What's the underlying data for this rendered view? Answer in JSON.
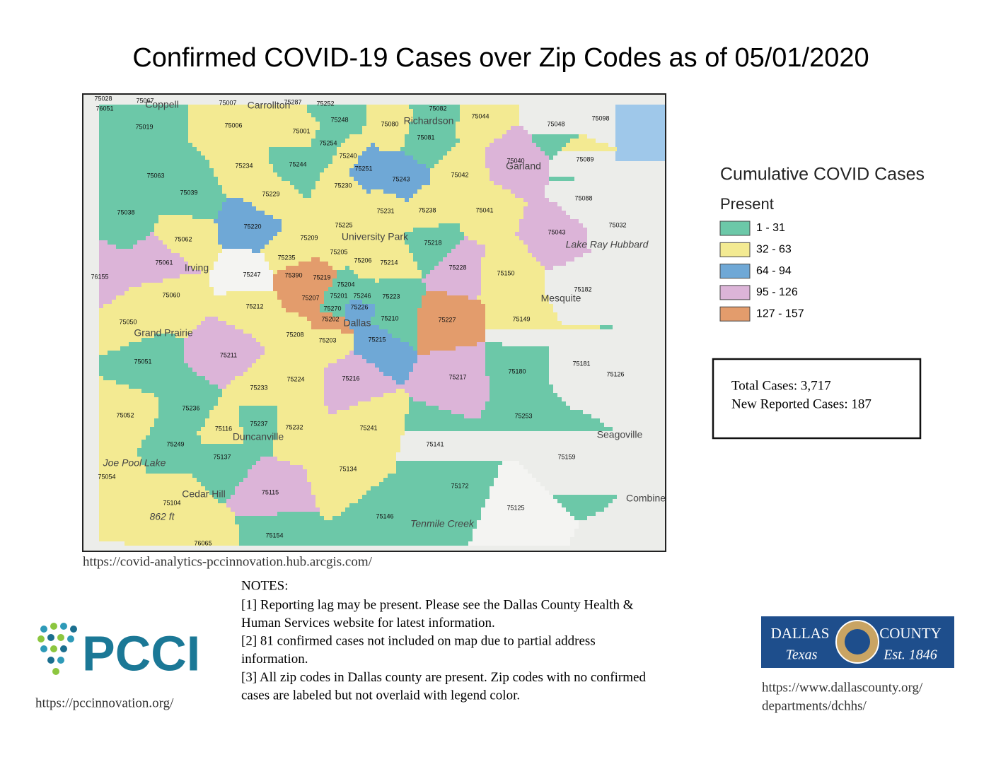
{
  "header": {
    "title": "Confirmed COVID-19 Cases over Zip Codes as of 05/01/2020"
  },
  "legend": {
    "title": "Cumulative COVID Cases",
    "subtitle": "Present",
    "entries": [
      {
        "label": "1 - 31",
        "color": "#6cc8a8",
        "zips": [
          "75028",
          "75067",
          "76051",
          "75252",
          "75082",
          "75048",
          "75098",
          "75081",
          "75019",
          "75248",
          "75254",
          "75063",
          "75244",
          "75039",
          "75088",
          "75038",
          "75032",
          "75218",
          "75204",
          "75182",
          "75201",
          "75246",
          "75223",
          "75270",
          "75210",
          "75051",
          "75180",
          "75236",
          "75253",
          "75237",
          "75141",
          "75249",
          "75137",
          "75159",
          "75172",
          "75146",
          "75154"
        ]
      },
      {
        "label": "32 - 63",
        "color": "#f3ea92",
        "zips": [
          "75007",
          "75287",
          "75044",
          "75006",
          "75080",
          "75001",
          "75240",
          "75089",
          "75234",
          "75042",
          "75230",
          "75229",
          "75231",
          "75238",
          "75041",
          "75225",
          "75062",
          "75209",
          "75205",
          "75235",
          "75206",
          "75214",
          "75150",
          "75060",
          "75212",
          "75149",
          "75050",
          "75208",
          "75203",
          "75181",
          "75126",
          "75224",
          "75233",
          "75052",
          "75116",
          "75232",
          "75241",
          "75134",
          "75054",
          "75104",
          "76065"
        ]
      },
      {
        "label": "64 - 94",
        "color": "#6fa8d6",
        "zips": [
          "75251",
          "75243",
          "75220",
          "75226",
          "75215"
        ]
      },
      {
        "label": "95 - 126",
        "color": "#dcb4d8",
        "zips": [
          "75040",
          "75043",
          "75061",
          "76155",
          "75228",
          "75211",
          "75216",
          "75217",
          "75115"
        ]
      },
      {
        "label": "127 - 157",
        "color": "#e39c6c",
        "zips": [
          "75390",
          "75219",
          "75207",
          "75227",
          "75202"
        ]
      }
    ]
  },
  "map": {
    "unfilled_zips": [
      "75247",
      "75125"
    ],
    "places": [
      "Coppell",
      "Carrollton",
      "Richardson",
      "Garland",
      "Irving",
      "University Park",
      "Dallas",
      "Mesquite",
      "Grand Prairie",
      "Duncanville",
      "Cedar Hill",
      "Seagoville",
      "Combine",
      "Lake Ray Hubbard",
      "Joe Pool Lake",
      "Tenmile Creek",
      "862 ft"
    ],
    "source": "https://covid-analytics-pccinnovation.hub.arcgis.com/"
  },
  "totals": {
    "total": "Total Cases: 3,717",
    "new": "New Reported Cases: 187"
  },
  "notes": {
    "heading": "NOTES:",
    "lines": [
      "[1] Reporting lag may be present. Please see the Dallas County Health &",
      "Human Services website for latest information.",
      "[2] 81 confirmed cases not included on map due to partial address",
      "information.",
      "[3] All zip codes in Dallas county are present. Zip codes with no confirmed",
      "cases are labeled but not overlaid with legend color."
    ]
  },
  "pcci": {
    "logo": "PCCI",
    "url": "https://pccinnovation.org/"
  },
  "county": {
    "left": "DALLAS",
    "right": "COUNTY",
    "state": "Texas",
    "established": "Est. 1846",
    "url_lines": [
      "https://www.dallascounty.org/",
      "departments/dchhs/"
    ]
  }
}
